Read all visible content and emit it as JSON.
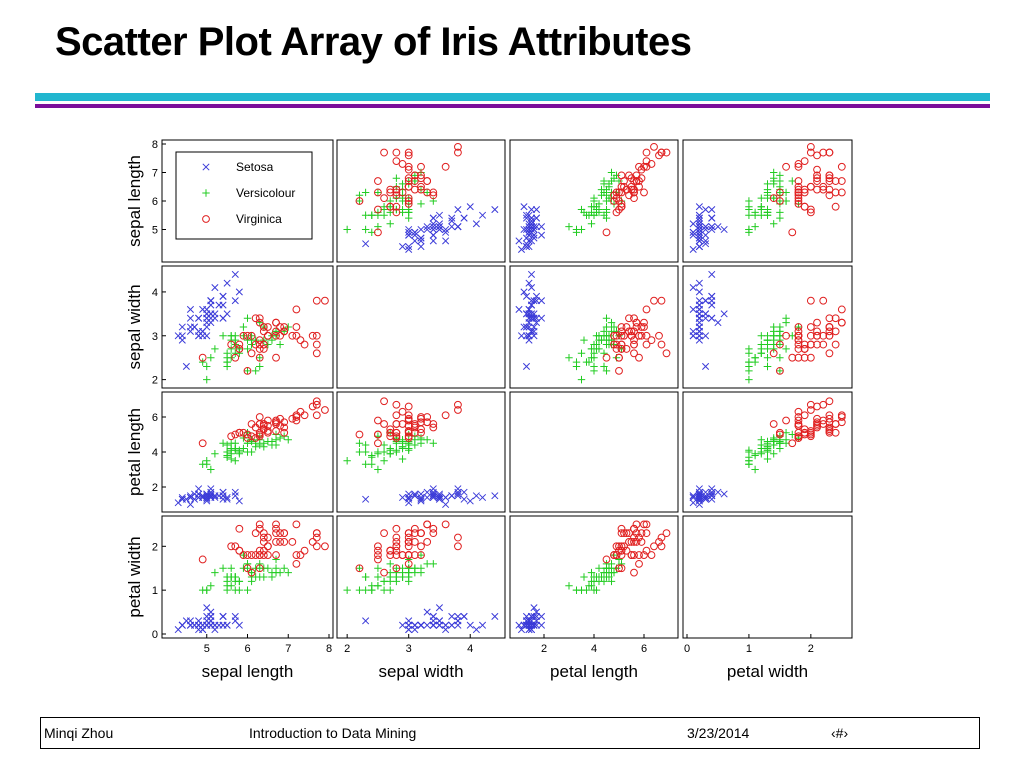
{
  "slide": {
    "title": "Scatter Plot Array of Iris Attributes"
  },
  "footer": {
    "author": "Minqi Zhou",
    "course": "Introduction to Data Mining",
    "date": "3/23/2014",
    "page": "‹#›"
  },
  "colors": {
    "rule_cyan": "#21b6cf",
    "rule_purple": "#7b0f9a",
    "setosa": "#3b3bd8",
    "versicolour": "#22cc22",
    "virginica": "#e02020"
  },
  "chart_data": {
    "type": "scatter",
    "variables": [
      "sepal length",
      "sepal width",
      "petal length",
      "petal width"
    ],
    "axis_labels": {
      "row": [
        "sepal length",
        "sepal width",
        "petal length",
        "petal width"
      ],
      "col": [
        "sepal length",
        "sepal width",
        "petal length",
        "petal width"
      ]
    },
    "ranges": {
      "sepal length": [
        4.0,
        8.0
      ],
      "sepal width": [
        1.9,
        4.5
      ],
      "petal length": [
        0.8,
        7.2
      ],
      "petal width": [
        0.0,
        2.6
      ]
    },
    "ticks": {
      "sepal length": [
        5,
        6,
        7,
        8
      ],
      "sepal width": [
        2,
        3,
        4
      ],
      "petal length": [
        2,
        4,
        6
      ],
      "petal width": [
        0,
        1,
        2
      ]
    },
    "y_ticks": {
      "sepal length": [
        5,
        6,
        7,
        8
      ],
      "sepal width": [
        2,
        3,
        4
      ],
      "petal length": [
        2,
        4,
        6
      ],
      "petal width": [
        0,
        1,
        2
      ]
    },
    "x_ticks": {
      "sepal length": [
        5,
        6,
        7,
        8
      ],
      "sepal width": [
        2,
        3,
        4
      ],
      "petal length": [
        2,
        4,
        6
      ],
      "petal width": [
        0,
        1,
        2
      ]
    },
    "diagonal": "empty",
    "legend": {
      "placement": "top-left of sepal-length row, first cell",
      "entries": [
        {
          "name": "Setosa",
          "marker": "x"
        },
        {
          "name": "Versicolour",
          "marker": "+"
        },
        {
          "name": "Virginica",
          "marker": "o"
        }
      ]
    },
    "series": [
      {
        "name": "Setosa",
        "marker": "x",
        "points": [
          [
            5.1,
            3.5,
            1.4,
            0.2
          ],
          [
            4.9,
            3.0,
            1.4,
            0.2
          ],
          [
            4.7,
            3.2,
            1.3,
            0.2
          ],
          [
            4.6,
            3.1,
            1.5,
            0.2
          ],
          [
            5.0,
            3.6,
            1.4,
            0.2
          ],
          [
            5.4,
            3.9,
            1.7,
            0.4
          ],
          [
            4.6,
            3.4,
            1.4,
            0.3
          ],
          [
            5.0,
            3.4,
            1.5,
            0.2
          ],
          [
            4.4,
            2.9,
            1.4,
            0.2
          ],
          [
            4.9,
            3.1,
            1.5,
            0.1
          ],
          [
            5.4,
            3.7,
            1.5,
            0.2
          ],
          [
            4.8,
            3.4,
            1.6,
            0.2
          ],
          [
            4.8,
            3.0,
            1.4,
            0.1
          ],
          [
            4.3,
            3.0,
            1.1,
            0.1
          ],
          [
            5.8,
            4.0,
            1.2,
            0.2
          ],
          [
            5.7,
            4.4,
            1.5,
            0.4
          ],
          [
            5.4,
            3.9,
            1.3,
            0.4
          ],
          [
            5.1,
            3.5,
            1.4,
            0.3
          ],
          [
            5.7,
            3.8,
            1.7,
            0.3
          ],
          [
            5.1,
            3.8,
            1.5,
            0.3
          ],
          [
            5.4,
            3.4,
            1.7,
            0.2
          ],
          [
            5.1,
            3.7,
            1.5,
            0.4
          ],
          [
            4.6,
            3.6,
            1.0,
            0.2
          ],
          [
            5.1,
            3.3,
            1.7,
            0.5
          ],
          [
            4.8,
            3.4,
            1.9,
            0.2
          ],
          [
            5.0,
            3.0,
            1.6,
            0.2
          ],
          [
            5.0,
            3.4,
            1.6,
            0.4
          ],
          [
            5.2,
            3.5,
            1.5,
            0.2
          ],
          [
            5.2,
            3.4,
            1.4,
            0.2
          ],
          [
            4.7,
            3.2,
            1.6,
            0.2
          ],
          [
            4.8,
            3.1,
            1.6,
            0.2
          ],
          [
            5.4,
            3.4,
            1.5,
            0.4
          ],
          [
            5.2,
            4.1,
            1.5,
            0.1
          ],
          [
            5.5,
            4.2,
            1.4,
            0.2
          ],
          [
            4.9,
            3.1,
            1.5,
            0.2
          ],
          [
            5.0,
            3.2,
            1.2,
            0.2
          ],
          [
            5.5,
            3.5,
            1.3,
            0.2
          ],
          [
            4.9,
            3.6,
            1.4,
            0.1
          ],
          [
            4.4,
            3.0,
            1.3,
            0.2
          ],
          [
            5.1,
            3.4,
            1.5,
            0.2
          ],
          [
            5.0,
            3.5,
            1.3,
            0.3
          ],
          [
            4.5,
            2.3,
            1.3,
            0.3
          ],
          [
            4.4,
            3.2,
            1.3,
            0.2
          ],
          [
            5.0,
            3.5,
            1.6,
            0.6
          ],
          [
            5.1,
            3.8,
            1.9,
            0.4
          ],
          [
            4.8,
            3.0,
            1.4,
            0.3
          ],
          [
            5.1,
            3.8,
            1.6,
            0.2
          ],
          [
            4.6,
            3.2,
            1.4,
            0.2
          ],
          [
            5.3,
            3.7,
            1.5,
            0.2
          ],
          [
            5.0,
            3.3,
            1.4,
            0.2
          ]
        ]
      },
      {
        "name": "Versicolour",
        "marker": "+",
        "points": [
          [
            7.0,
            3.2,
            4.7,
            1.4
          ],
          [
            6.4,
            3.2,
            4.5,
            1.5
          ],
          [
            6.9,
            3.1,
            4.9,
            1.5
          ],
          [
            5.5,
            2.3,
            4.0,
            1.3
          ],
          [
            6.5,
            2.8,
            4.6,
            1.5
          ],
          [
            5.7,
            2.8,
            4.5,
            1.3
          ],
          [
            6.3,
            3.3,
            4.7,
            1.6
          ],
          [
            4.9,
            2.4,
            3.3,
            1.0
          ],
          [
            6.6,
            2.9,
            4.6,
            1.3
          ],
          [
            5.2,
            2.7,
            3.9,
            1.4
          ],
          [
            5.0,
            2.0,
            3.5,
            1.0
          ],
          [
            5.9,
            3.0,
            4.2,
            1.5
          ],
          [
            6.0,
            2.2,
            4.0,
            1.0
          ],
          [
            6.1,
            2.9,
            4.7,
            1.4
          ],
          [
            5.6,
            2.9,
            3.6,
            1.3
          ],
          [
            6.7,
            3.1,
            4.4,
            1.4
          ],
          [
            5.6,
            3.0,
            4.5,
            1.5
          ],
          [
            5.8,
            2.7,
            4.1,
            1.0
          ],
          [
            6.2,
            2.2,
            4.5,
            1.5
          ],
          [
            5.6,
            2.5,
            3.9,
            1.1
          ],
          [
            5.9,
            3.2,
            4.8,
            1.8
          ],
          [
            6.1,
            2.8,
            4.0,
            1.3
          ],
          [
            6.3,
            2.5,
            4.9,
            1.5
          ],
          [
            6.1,
            2.8,
            4.7,
            1.2
          ],
          [
            6.4,
            2.9,
            4.3,
            1.3
          ],
          [
            6.6,
            3.0,
            4.4,
            1.4
          ],
          [
            6.8,
            2.8,
            4.8,
            1.4
          ],
          [
            6.7,
            3.0,
            5.0,
            1.7
          ],
          [
            6.0,
            2.9,
            4.5,
            1.5
          ],
          [
            5.7,
            2.6,
            3.5,
            1.0
          ],
          [
            5.5,
            2.4,
            3.8,
            1.1
          ],
          [
            5.5,
            2.4,
            3.7,
            1.0
          ],
          [
            5.8,
            2.7,
            3.9,
            1.2
          ],
          [
            6.0,
            2.7,
            5.1,
            1.6
          ],
          [
            5.4,
            3.0,
            4.5,
            1.5
          ],
          [
            6.0,
            3.4,
            4.5,
            1.6
          ],
          [
            6.7,
            3.1,
            4.7,
            1.5
          ],
          [
            6.3,
            2.3,
            4.4,
            1.3
          ],
          [
            5.6,
            3.0,
            4.1,
            1.3
          ],
          [
            5.5,
            2.5,
            4.0,
            1.3
          ],
          [
            5.5,
            2.6,
            4.4,
            1.2
          ],
          [
            6.1,
            3.0,
            4.6,
            1.4
          ],
          [
            5.8,
            2.6,
            4.0,
            1.2
          ],
          [
            5.0,
            2.3,
            3.3,
            1.0
          ],
          [
            5.6,
            2.7,
            4.2,
            1.3
          ],
          [
            5.7,
            3.0,
            4.2,
            1.2
          ],
          [
            5.7,
            2.9,
            4.2,
            1.3
          ],
          [
            6.2,
            2.9,
            4.3,
            1.3
          ],
          [
            5.1,
            2.5,
            3.0,
            1.1
          ],
          [
            5.7,
            2.8,
            4.1,
            1.3
          ]
        ]
      },
      {
        "name": "Virginica",
        "marker": "o",
        "points": [
          [
            6.3,
            3.3,
            6.0,
            2.5
          ],
          [
            5.8,
            2.7,
            5.1,
            1.9
          ],
          [
            7.1,
            3.0,
            5.9,
            2.1
          ],
          [
            6.3,
            2.9,
            5.6,
            1.8
          ],
          [
            6.5,
            3.0,
            5.8,
            2.2
          ],
          [
            7.6,
            3.0,
            6.6,
            2.1
          ],
          [
            4.9,
            2.5,
            4.5,
            1.7
          ],
          [
            7.3,
            2.9,
            6.3,
            1.8
          ],
          [
            6.7,
            2.5,
            5.8,
            1.8
          ],
          [
            7.2,
            3.6,
            6.1,
            2.5
          ],
          [
            6.5,
            3.2,
            5.1,
            2.0
          ],
          [
            6.4,
            2.7,
            5.3,
            1.9
          ],
          [
            6.8,
            3.0,
            5.5,
            2.1
          ],
          [
            5.7,
            2.5,
            5.0,
            2.0
          ],
          [
            5.8,
            2.8,
            5.1,
            2.4
          ],
          [
            6.4,
            3.2,
            5.3,
            2.3
          ],
          [
            6.5,
            3.0,
            5.5,
            1.8
          ],
          [
            7.7,
            3.8,
            6.7,
            2.2
          ],
          [
            7.7,
            2.6,
            6.9,
            2.3
          ],
          [
            6.0,
            2.2,
            5.0,
            1.5
          ],
          [
            6.9,
            3.2,
            5.7,
            2.3
          ],
          [
            5.6,
            2.8,
            4.9,
            2.0
          ],
          [
            7.7,
            2.8,
            6.7,
            2.0
          ],
          [
            6.3,
            2.7,
            4.9,
            1.8
          ],
          [
            6.7,
            3.3,
            5.7,
            2.1
          ],
          [
            7.2,
            3.2,
            6.0,
            1.8
          ],
          [
            6.2,
            2.8,
            4.8,
            1.8
          ],
          [
            6.1,
            3.0,
            4.9,
            1.8
          ],
          [
            6.4,
            2.8,
            5.6,
            2.1
          ],
          [
            7.2,
            3.0,
            5.8,
            1.6
          ],
          [
            7.4,
            2.8,
            6.1,
            1.9
          ],
          [
            7.9,
            3.8,
            6.4,
            2.0
          ],
          [
            6.4,
            2.8,
            5.6,
            2.2
          ],
          [
            6.3,
            2.8,
            5.1,
            1.5
          ],
          [
            6.1,
            2.6,
            5.6,
            1.4
          ],
          [
            7.7,
            3.0,
            6.1,
            2.3
          ],
          [
            6.3,
            3.4,
            5.6,
            2.4
          ],
          [
            6.4,
            3.1,
            5.5,
            1.8
          ],
          [
            6.0,
            3.0,
            4.8,
            1.8
          ],
          [
            6.9,
            3.1,
            5.4,
            2.1
          ],
          [
            6.7,
            3.1,
            5.6,
            2.4
          ],
          [
            6.9,
            3.1,
            5.1,
            2.3
          ],
          [
            5.8,
            2.7,
            5.1,
            1.9
          ],
          [
            6.8,
            3.2,
            5.9,
            2.3
          ],
          [
            6.7,
            3.3,
            5.7,
            2.5
          ],
          [
            6.7,
            3.0,
            5.2,
            2.3
          ],
          [
            6.3,
            2.5,
            5.0,
            1.9
          ],
          [
            6.5,
            3.0,
            5.2,
            2.0
          ],
          [
            6.2,
            3.4,
            5.4,
            2.3
          ],
          [
            5.9,
            3.0,
            5.1,
            1.8
          ]
        ]
      }
    ]
  }
}
